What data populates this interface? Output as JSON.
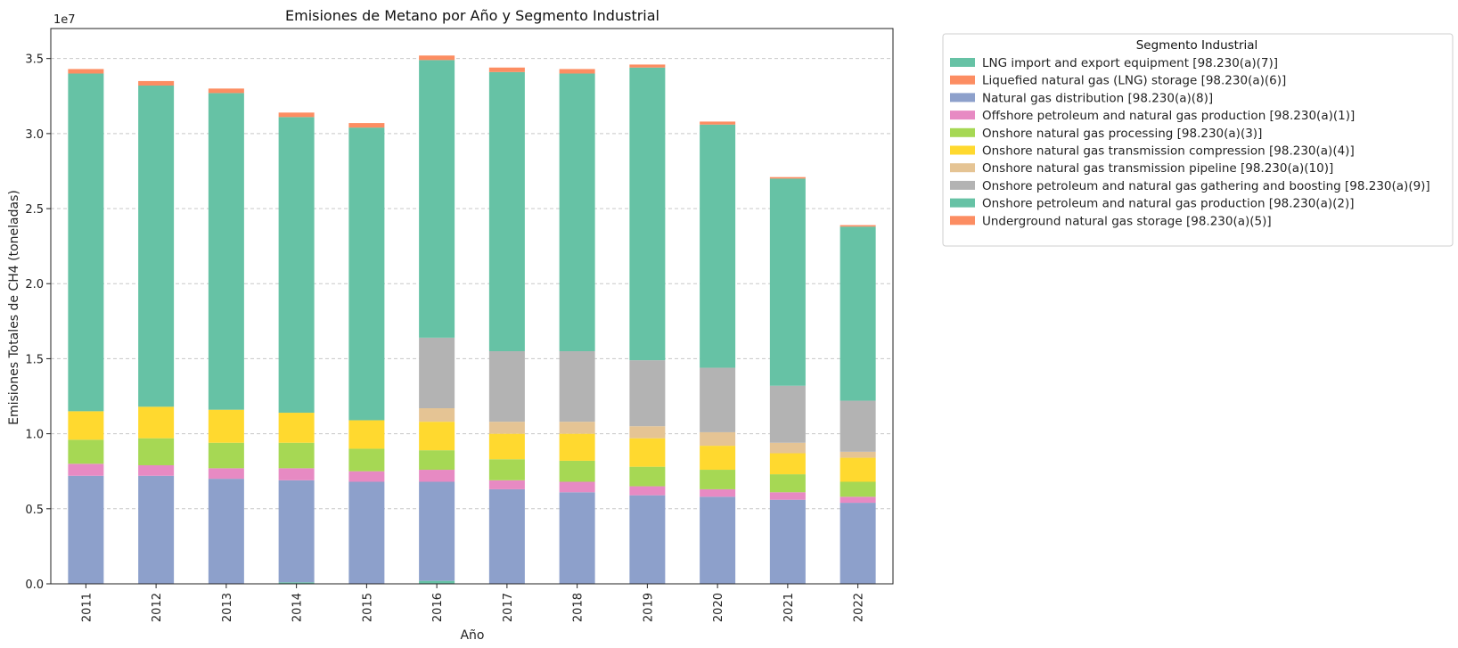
{
  "chart_data": {
    "type": "bar",
    "stacked": true,
    "title": "Emisiones de Metano por Año y Segmento Industrial",
    "xlabel": "Año",
    "ylabel": "Emisiones Totales de CH4 (toneladas)",
    "y_multiplier_label": "1e7",
    "ylim": [
      0,
      3.7
    ],
    "yticks": [
      "0.0",
      "0.5",
      "1.0",
      "1.5",
      "2.0",
      "2.5",
      "3.0",
      "3.5"
    ],
    "grid": "horizontal-dashed",
    "legend_title": "Segmento Industrial",
    "legend_position": "outside-right-top",
    "categories": [
      "2011",
      "2012",
      "2013",
      "2014",
      "2015",
      "2016",
      "2017",
      "2018",
      "2019",
      "2020",
      "2021",
      "2022"
    ],
    "series": [
      {
        "name": "LNG import and export equipment [98.230(a)(7)]",
        "color": "#66c2a5",
        "values": [
          0,
          0,
          0,
          0.01,
          0,
          0.02,
          0,
          0,
          0,
          0,
          0,
          0
        ]
      },
      {
        "name": "Liquefied natural gas (LNG) storage [98.230(a)(6)]",
        "color": "#fc8d62",
        "values": [
          0,
          0,
          0,
          0,
          0,
          0,
          0,
          0,
          0,
          0,
          0,
          0
        ]
      },
      {
        "name": "Natural gas distribution [98.230(a)(8)]",
        "color": "#8da0cb",
        "values": [
          0.72,
          0.72,
          0.7,
          0.68,
          0.68,
          0.66,
          0.63,
          0.61,
          0.59,
          0.58,
          0.56,
          0.54
        ]
      },
      {
        "name": "Offshore petroleum and natural gas production [98.230(a)(1)]",
        "color": "#e78ac3",
        "values": [
          0.08,
          0.07,
          0.07,
          0.08,
          0.07,
          0.08,
          0.06,
          0.07,
          0.06,
          0.05,
          0.05,
          0.04
        ]
      },
      {
        "name": "Onshore natural gas processing [98.230(a)(3)]",
        "color": "#a6d854",
        "values": [
          0.16,
          0.18,
          0.17,
          0.17,
          0.15,
          0.13,
          0.14,
          0.14,
          0.13,
          0.13,
          0.12,
          0.1
        ]
      },
      {
        "name": "Onshore natural gas transmission compression [98.230(a)(4)]",
        "color": "#ffd92f",
        "values": [
          0.19,
          0.21,
          0.22,
          0.2,
          0.19,
          0.19,
          0.17,
          0.18,
          0.19,
          0.16,
          0.14,
          0.16
        ]
      },
      {
        "name": "Onshore natural gas transmission pipeline [98.230(a)(10)]",
        "color": "#e5c494",
        "values": [
          0,
          0,
          0,
          0,
          0,
          0.09,
          0.08,
          0.08,
          0.08,
          0.09,
          0.07,
          0.04
        ]
      },
      {
        "name": "Onshore petroleum and natural gas gathering and boosting [98.230(a)(9)]",
        "color": "#b3b3b3",
        "values": [
          0,
          0,
          0,
          0,
          0,
          0.47,
          0.47,
          0.47,
          0.44,
          0.43,
          0.38,
          0.34
        ]
      },
      {
        "name": "Onshore petroleum and natural gas production [98.230(a)(2)]",
        "color": "#66c2a5",
        "values": [
          2.25,
          2.14,
          2.11,
          1.97,
          1.95,
          1.85,
          1.86,
          1.85,
          1.95,
          1.62,
          1.38,
          1.16
        ]
      },
      {
        "name": "Underground natural gas storage [98.230(a)(5)]",
        "color": "#fc8d62",
        "values": [
          0.03,
          0.03,
          0.03,
          0.03,
          0.03,
          0.03,
          0.03,
          0.03,
          0.02,
          0.02,
          0.01,
          0.01
        ]
      }
    ]
  }
}
